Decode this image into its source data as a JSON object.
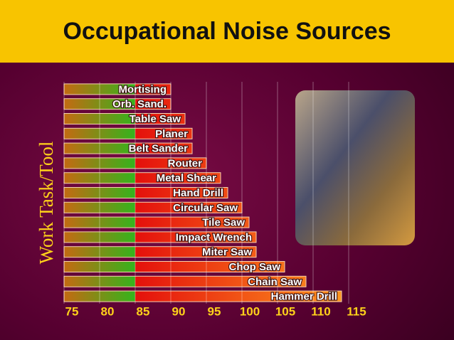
{
  "chart_data": {
    "type": "hbar",
    "title": "Occupational Noise Sources",
    "y_label": "Work Task/Tool",
    "categories": [
      "Mortising",
      "Orb. Sand.",
      "Table Saw",
      "Planer",
      "Belt Sander",
      "Router",
      "Metal Shear",
      "Hand Drill",
      "Circular Saw",
      "Tile Saw",
      "Impact Wrench",
      "Miter Saw",
      "Chop Saw",
      "Chain Saw",
      "Hammer Drill"
    ],
    "values": [
      90,
      90,
      92,
      93,
      93,
      95,
      97,
      98,
      100,
      101,
      102,
      102,
      106,
      109,
      114
    ],
    "xlim": [
      75,
      115
    ],
    "xticks": [
      75,
      80,
      85,
      90,
      95,
      100,
      105,
      110,
      115
    ],
    "grid": true
  }
}
